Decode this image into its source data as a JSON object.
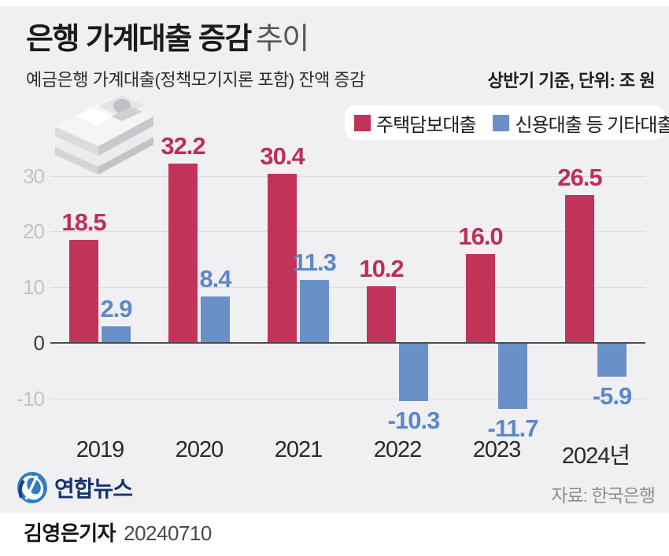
{
  "header": {
    "title_bold": "은행 가계대출 증감",
    "title_rest": "추이",
    "subtitle": "예금은행 가계대출(정책모기지론 포함) 잔액 증감",
    "unit_note": "상반기 기준, 단위: 조 원"
  },
  "legend": [
    {
      "label": "주택담보대출",
      "color": "#c2335a"
    },
    {
      "label": "신용대출 등 기타대출",
      "color": "#6a90c8"
    }
  ],
  "chart_data": {
    "type": "bar",
    "title": "은행 가계대출 증감 추이",
    "xlabel": "",
    "ylabel": "",
    "categories": [
      "2019",
      "2020",
      "2021",
      "2022",
      "2023",
      "2024년"
    ],
    "series": [
      {
        "name": "주택담보대출",
        "color": "#c2335a",
        "label_color": "#bd2f56",
        "values": [
          18.5,
          32.2,
          30.4,
          10.2,
          16.0,
          26.5
        ],
        "labels": [
          "18.5",
          "32.2",
          "30.4",
          "10.2",
          "16.0",
          "26.5"
        ]
      },
      {
        "name": "신용대출 등 기타대출",
        "color": "#6a90c8",
        "label_color": "#5c88c8",
        "values": [
          2.9,
          8.4,
          11.3,
          -10.3,
          -11.7,
          -5.9
        ],
        "labels": [
          "2.9",
          "8.4",
          "11.3",
          "-10.3",
          "-11.7",
          "-5.9"
        ]
      }
    ],
    "yticks": [
      30,
      20,
      10,
      0,
      -10
    ],
    "ylim": [
      -14,
      34
    ],
    "grid": true,
    "legend_position": "top-right"
  },
  "footer": {
    "agency": "연합뉴스",
    "source": "자료: 한국은행",
    "byline_name": "김영은기자",
    "byline_date": "20240710"
  },
  "colors": {
    "card_bg": "#f0f0f2",
    "grid": "#dcdcdd",
    "axis": "#4b4b4d",
    "tick": "#c4c4c7",
    "tick_zero": "#3c3c3c",
    "brand_navy": "#14366e",
    "emblem_blue": "#2e7cc4"
  }
}
